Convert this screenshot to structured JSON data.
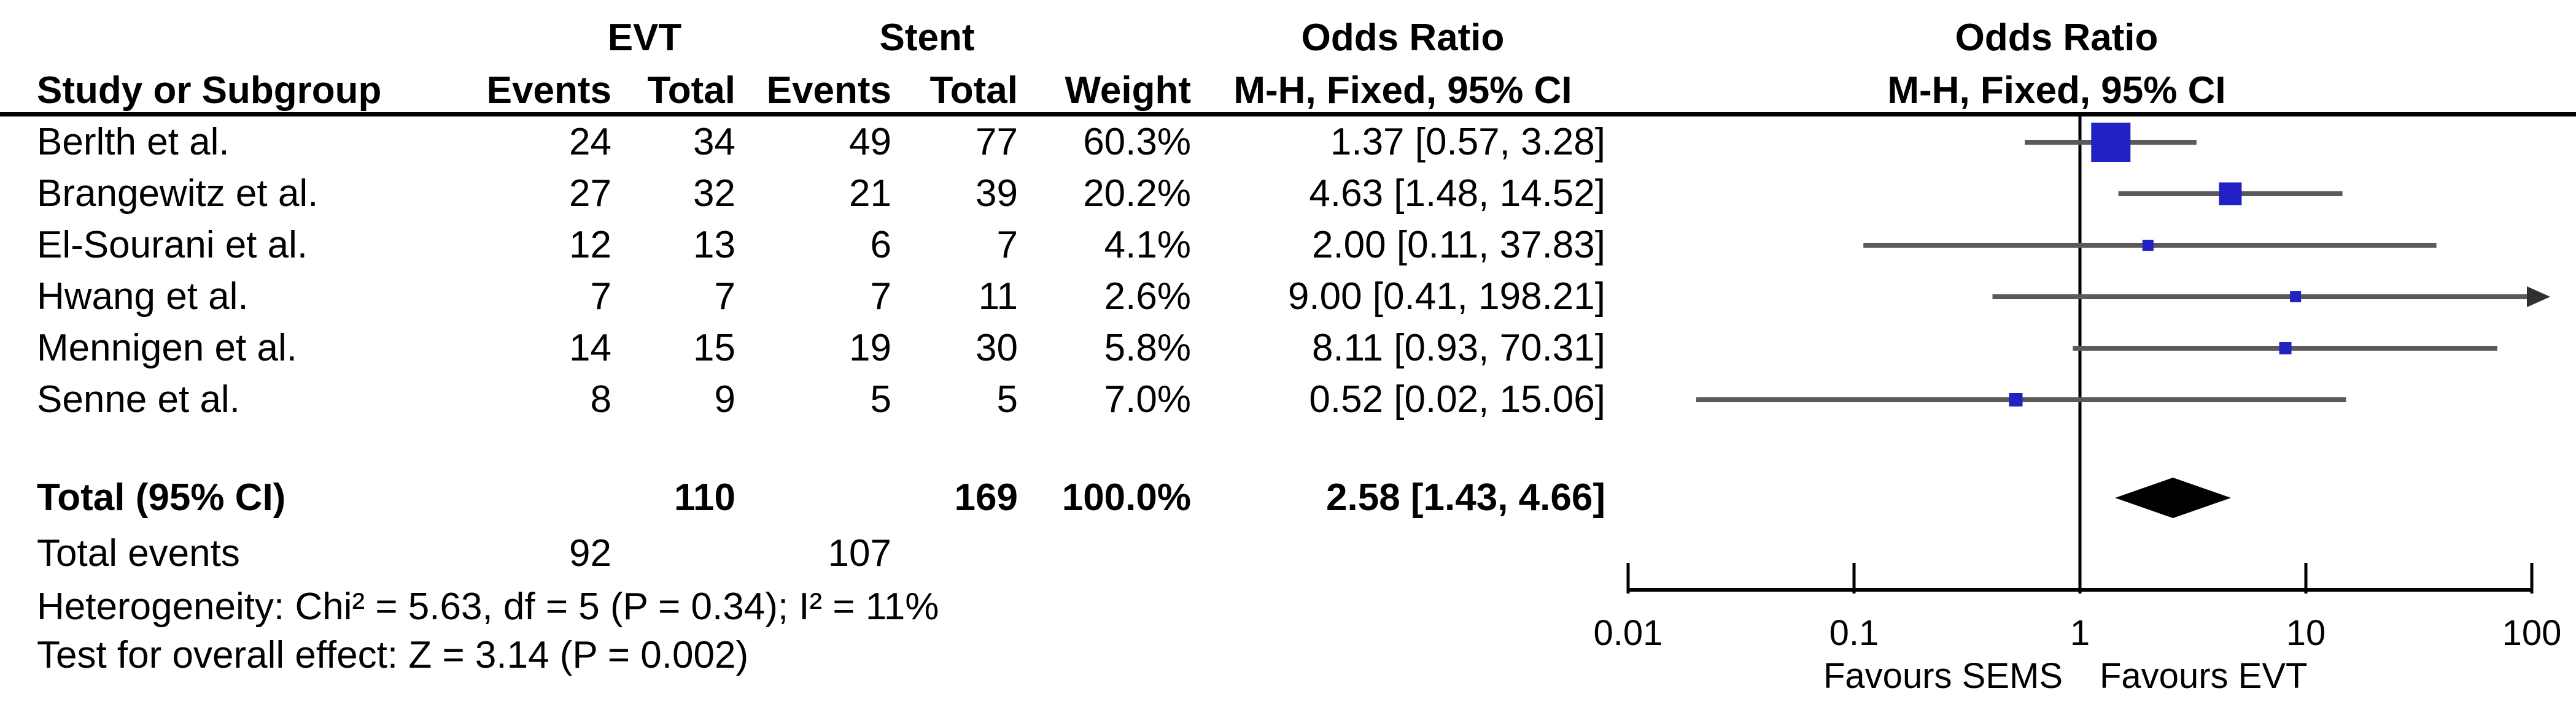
{
  "table": {
    "group_headers": {
      "evt": "EVT",
      "stent": "Stent",
      "odds_ratio_text": "Odds Ratio",
      "odds_ratio_plot": "Odds Ratio"
    },
    "column_headers": {
      "study": "Study or Subgroup",
      "evt_events": "Events",
      "evt_total": "Total",
      "stent_events": "Events",
      "stent_total": "Total",
      "weight": "Weight",
      "mh_text": "M-H, Fixed, 95% CI",
      "mh_plot": "M-H, Fixed, 95% CI"
    },
    "total_row": {
      "label": "Total (95% CI)",
      "evt_total": "110",
      "stent_total": "169",
      "weight": "100.0%",
      "or_ci": "2.58 [1.43, 4.66]"
    },
    "total_events_row": {
      "label": "Total events",
      "evt": "92",
      "stent": "107"
    },
    "heterogeneity": "Heterogeneity: Chi² = 5.63, df = 5 (P = 0.34); I² = 11%",
    "overall_effect": "Test for overall effect: Z = 3.14 (P = 0.002)"
  },
  "chart_data": {
    "type": "forest",
    "effect_measure": "Odds Ratio",
    "method": "M-H, Fixed, 95% CI",
    "studies": [
      {
        "study": "Berlth et al.",
        "evt_events": 24,
        "evt_total": 34,
        "stent_events": 49,
        "stent_total": 77,
        "weight_pct": 60.3,
        "weight_label": "60.3%",
        "or": 1.37,
        "ci_low": 0.57,
        "ci_high": 3.28,
        "or_ci_label": "1.37 [0.57, 3.28]"
      },
      {
        "study": "Brangewitz et al.",
        "evt_events": 27,
        "evt_total": 32,
        "stent_events": 21,
        "stent_total": 39,
        "weight_pct": 20.2,
        "weight_label": "20.2%",
        "or": 4.63,
        "ci_low": 1.48,
        "ci_high": 14.52,
        "or_ci_label": "4.63 [1.48, 14.52]"
      },
      {
        "study": "El-Sourani et al.",
        "evt_events": 12,
        "evt_total": 13,
        "stent_events": 6,
        "stent_total": 7,
        "weight_pct": 4.1,
        "weight_label": "4.1%",
        "or": 2.0,
        "ci_low": 0.11,
        "ci_high": 37.83,
        "or_ci_label": "2.00 [0.11, 37.83]"
      },
      {
        "study": "Hwang et al.",
        "evt_events": 7,
        "evt_total": 7,
        "stent_events": 7,
        "stent_total": 11,
        "weight_pct": 2.6,
        "weight_label": "2.6%",
        "or": 9.0,
        "ci_low": 0.41,
        "ci_high": 198.21,
        "or_ci_label": "9.00 [0.41, 198.21]"
      },
      {
        "study": "Mennigen et al.",
        "evt_events": 14,
        "evt_total": 15,
        "stent_events": 19,
        "stent_total": 30,
        "weight_pct": 5.8,
        "weight_label": "5.8%",
        "or": 8.11,
        "ci_low": 0.93,
        "ci_high": 70.31,
        "or_ci_label": "8.11 [0.93, 70.31]"
      },
      {
        "study": "Senne et al.",
        "evt_events": 8,
        "evt_total": 9,
        "stent_events": 5,
        "stent_total": 5,
        "weight_pct": 7.0,
        "weight_label": "7.0%",
        "or": 0.52,
        "ci_low": 0.02,
        "ci_high": 15.06,
        "or_ci_label": "0.52 [0.02, 15.06]"
      }
    ],
    "total": {
      "or": 2.58,
      "ci_low": 1.43,
      "ci_high": 4.66
    },
    "total_events": {
      "evt": 92,
      "stent": 107
    },
    "x_axis": {
      "scale": "log",
      "range": [
        0.01,
        100
      ],
      "ticks": [
        "0.01",
        "0.1",
        "1",
        "10",
        "100"
      ],
      "no_effect_value": 1,
      "left_label": "Favours SEMS",
      "right_label": "Favours EVT"
    },
    "colors": {
      "effect_square": "#2121c4",
      "ci_line": "#5a5a5a",
      "diamond": "#000000",
      "axis": "#000000"
    }
  }
}
